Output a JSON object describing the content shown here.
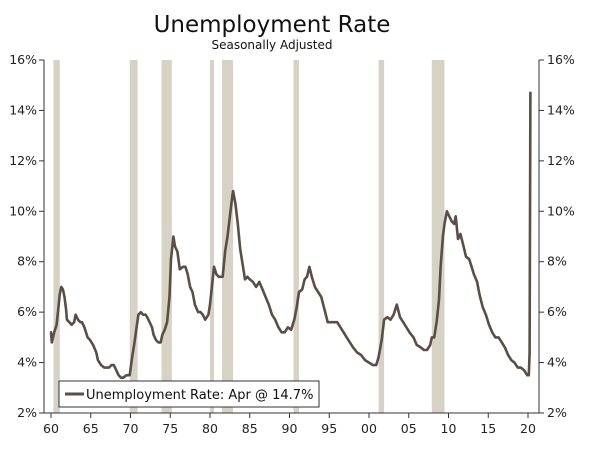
{
  "chart_data": {
    "type": "line",
    "title": "Unemployment Rate",
    "subtitle": "Seasonally Adjusted",
    "xlabel": "",
    "ylabel": "",
    "xlim": [
      1960,
      2020.6
    ],
    "ylim": [
      2,
      16
    ],
    "x_ticks": [
      {
        "value": 1960,
        "label": "60"
      },
      {
        "value": 1965,
        "label": "65"
      },
      {
        "value": 1970,
        "label": "70"
      },
      {
        "value": 1975,
        "label": "75"
      },
      {
        "value": 1980,
        "label": "80"
      },
      {
        "value": 1985,
        "label": "85"
      },
      {
        "value": 1990,
        "label": "90"
      },
      {
        "value": 1995,
        "label": "95"
      },
      {
        "value": 2000,
        "label": "00"
      },
      {
        "value": 2005,
        "label": "05"
      },
      {
        "value": 2010,
        "label": "10"
      },
      {
        "value": 2015,
        "label": "15"
      },
      {
        "value": 2020,
        "label": "20"
      }
    ],
    "y_ticks": [
      {
        "value": 2,
        "label": "2%"
      },
      {
        "value": 4,
        "label": "4%"
      },
      {
        "value": 6,
        "label": "6%"
      },
      {
        "value": 8,
        "label": "8%"
      },
      {
        "value": 10,
        "label": "10%"
      },
      {
        "value": 12,
        "label": "12%"
      },
      {
        "value": 14,
        "label": "14%"
      },
      {
        "value": 16,
        "label": "16%"
      }
    ],
    "grid": false,
    "legend": {
      "position": "bottom-left",
      "label": "Unemployment Rate: Apr @ 14.7%"
    },
    "colors": {
      "line": "#5a4e46",
      "recession": "#d6d2c6",
      "axis": "#333333"
    },
    "recessions": [
      [
        1960.3,
        1961.1
      ],
      [
        1969.9,
        1970.9
      ],
      [
        1973.9,
        1975.2
      ],
      [
        1980.0,
        1980.5
      ],
      [
        1981.5,
        1982.9
      ],
      [
        1990.5,
        1991.2
      ],
      [
        2001.2,
        2001.9
      ],
      [
        2007.9,
        2009.5
      ]
    ],
    "series": [
      {
        "values": [
          [
            1960.0,
            5.2
          ],
          [
            1960.1,
            4.8
          ],
          [
            1960.4,
            5.2
          ],
          [
            1960.7,
            5.5
          ],
          [
            1960.9,
            6.1
          ],
          [
            1961.1,
            6.7
          ],
          [
            1961.3,
            7.0
          ],
          [
            1961.5,
            6.9
          ],
          [
            1961.7,
            6.6
          ],
          [
            1961.9,
            6.1
          ],
          [
            1962.0,
            5.7
          ],
          [
            1962.3,
            5.6
          ],
          [
            1962.6,
            5.5
          ],
          [
            1962.9,
            5.6
          ],
          [
            1963.1,
            5.9
          ],
          [
            1963.4,
            5.7
          ],
          [
            1963.7,
            5.6
          ],
          [
            1963.9,
            5.6
          ],
          [
            1964.2,
            5.4
          ],
          [
            1964.6,
            5.0
          ],
          [
            1964.9,
            4.9
          ],
          [
            1965.3,
            4.7
          ],
          [
            1965.7,
            4.4
          ],
          [
            1965.9,
            4.1
          ],
          [
            1966.3,
            3.9
          ],
          [
            1966.7,
            3.8
          ],
          [
            1967.0,
            3.8
          ],
          [
            1967.3,
            3.8
          ],
          [
            1967.6,
            3.9
          ],
          [
            1967.9,
            3.9
          ],
          [
            1968.2,
            3.7
          ],
          [
            1968.5,
            3.5
          ],
          [
            1968.8,
            3.4
          ],
          [
            1969.1,
            3.4
          ],
          [
            1969.5,
            3.5
          ],
          [
            1969.9,
            3.5
          ],
          [
            1970.2,
            4.2
          ],
          [
            1970.5,
            4.8
          ],
          [
            1970.8,
            5.5
          ],
          [
            1971.0,
            5.9
          ],
          [
            1971.3,
            6.0
          ],
          [
            1971.6,
            5.9
          ],
          [
            1971.9,
            5.9
          ],
          [
            1972.1,
            5.8
          ],
          [
            1972.4,
            5.6
          ],
          [
            1972.7,
            5.4
          ],
          [
            1972.9,
            5.1
          ],
          [
            1973.2,
            4.9
          ],
          [
            1973.5,
            4.8
          ],
          [
            1973.8,
            4.8
          ],
          [
            1974.0,
            5.1
          ],
          [
            1974.3,
            5.3
          ],
          [
            1974.6,
            5.6
          ],
          [
            1974.9,
            6.6
          ],
          [
            1975.1,
            8.1
          ],
          [
            1975.4,
            9.0
          ],
          [
            1975.6,
            8.6
          ],
          [
            1975.9,
            8.4
          ],
          [
            1976.2,
            7.7
          ],
          [
            1976.6,
            7.8
          ],
          [
            1976.9,
            7.8
          ],
          [
            1977.2,
            7.5
          ],
          [
            1977.5,
            7.0
          ],
          [
            1977.8,
            6.8
          ],
          [
            1978.1,
            6.3
          ],
          [
            1978.5,
            6.0
          ],
          [
            1978.8,
            6.0
          ],
          [
            1979.1,
            5.9
          ],
          [
            1979.4,
            5.7
          ],
          [
            1979.8,
            5.9
          ],
          [
            1980.0,
            6.3
          ],
          [
            1980.3,
            7.2
          ],
          [
            1980.5,
            7.8
          ],
          [
            1980.8,
            7.5
          ],
          [
            1981.1,
            7.4
          ],
          [
            1981.4,
            7.4
          ],
          [
            1981.6,
            7.4
          ],
          [
            1981.9,
            8.4
          ],
          [
            1982.2,
            9.0
          ],
          [
            1982.5,
            9.8
          ],
          [
            1982.8,
            10.6
          ],
          [
            1982.9,
            10.8
          ],
          [
            1983.2,
            10.3
          ],
          [
            1983.5,
            9.5
          ],
          [
            1983.8,
            8.5
          ],
          [
            1984.1,
            7.9
          ],
          [
            1984.4,
            7.3
          ],
          [
            1984.7,
            7.4
          ],
          [
            1985.0,
            7.3
          ],
          [
            1985.4,
            7.2
          ],
          [
            1985.8,
            7.0
          ],
          [
            1986.2,
            7.2
          ],
          [
            1986.6,
            6.9
          ],
          [
            1987.0,
            6.6
          ],
          [
            1987.4,
            6.3
          ],
          [
            1987.8,
            5.9
          ],
          [
            1988.2,
            5.7
          ],
          [
            1988.6,
            5.4
          ],
          [
            1989.0,
            5.2
          ],
          [
            1989.4,
            5.2
          ],
          [
            1989.8,
            5.4
          ],
          [
            1990.2,
            5.3
          ],
          [
            1990.6,
            5.7
          ],
          [
            1990.9,
            6.2
          ],
          [
            1991.2,
            6.8
          ],
          [
            1991.6,
            6.9
          ],
          [
            1991.9,
            7.3
          ],
          [
            1992.2,
            7.4
          ],
          [
            1992.5,
            7.8
          ],
          [
            1992.8,
            7.4
          ],
          [
            1993.2,
            7.0
          ],
          [
            1993.6,
            6.8
          ],
          [
            1994.0,
            6.6
          ],
          [
            1994.4,
            6.1
          ],
          [
            1994.8,
            5.6
          ],
          [
            1995.2,
            5.6
          ],
          [
            1995.6,
            5.6
          ],
          [
            1996.0,
            5.6
          ],
          [
            1996.4,
            5.4
          ],
          [
            1996.8,
            5.2
          ],
          [
            1997.2,
            5.0
          ],
          [
            1997.6,
            4.8
          ],
          [
            1998.0,
            4.6
          ],
          [
            1998.5,
            4.4
          ],
          [
            1999.0,
            4.3
          ],
          [
            1999.5,
            4.1
          ],
          [
            2000.0,
            4.0
          ],
          [
            2000.5,
            3.9
          ],
          [
            2000.9,
            3.9
          ],
          [
            2001.2,
            4.2
          ],
          [
            2001.6,
            4.9
          ],
          [
            2001.9,
            5.7
          ],
          [
            2002.3,
            5.8
          ],
          [
            2002.7,
            5.7
          ],
          [
            2003.1,
            5.9
          ],
          [
            2003.5,
            6.3
          ],
          [
            2003.9,
            5.8
          ],
          [
            2004.3,
            5.6
          ],
          [
            2004.7,
            5.4
          ],
          [
            2005.1,
            5.2
          ],
          [
            2005.6,
            5.0
          ],
          [
            2006.0,
            4.7
          ],
          [
            2006.5,
            4.6
          ],
          [
            2006.9,
            4.5
          ],
          [
            2007.3,
            4.5
          ],
          [
            2007.7,
            4.7
          ],
          [
            2007.9,
            5.0
          ],
          [
            2008.2,
            5.0
          ],
          [
            2008.5,
            5.6
          ],
          [
            2008.8,
            6.5
          ],
          [
            2009.0,
            7.8
          ],
          [
            2009.3,
            9.0
          ],
          [
            2009.5,
            9.5
          ],
          [
            2009.8,
            10.0
          ],
          [
            2010.1,
            9.8
          ],
          [
            2010.4,
            9.6
          ],
          [
            2010.7,
            9.5
          ],
          [
            2010.9,
            9.8
          ],
          [
            2011.2,
            8.9
          ],
          [
            2011.5,
            9.1
          ],
          [
            2011.9,
            8.6
          ],
          [
            2012.2,
            8.2
          ],
          [
            2012.6,
            8.1
          ],
          [
            2012.9,
            7.8
          ],
          [
            2013.2,
            7.5
          ],
          [
            2013.6,
            7.2
          ],
          [
            2013.9,
            6.7
          ],
          [
            2014.3,
            6.2
          ],
          [
            2014.7,
            5.9
          ],
          [
            2015.1,
            5.5
          ],
          [
            2015.5,
            5.2
          ],
          [
            2015.9,
            5.0
          ],
          [
            2016.3,
            5.0
          ],
          [
            2016.7,
            4.8
          ],
          [
            2017.1,
            4.6
          ],
          [
            2017.5,
            4.3
          ],
          [
            2017.9,
            4.1
          ],
          [
            2018.3,
            4.0
          ],
          [
            2018.7,
            3.8
          ],
          [
            2019.1,
            3.8
          ],
          [
            2019.5,
            3.7
          ],
          [
            2019.9,
            3.5
          ],
          [
            2020.1,
            3.5
          ],
          [
            2020.2,
            4.4
          ],
          [
            2020.3,
            14.7
          ]
        ]
      }
    ]
  }
}
